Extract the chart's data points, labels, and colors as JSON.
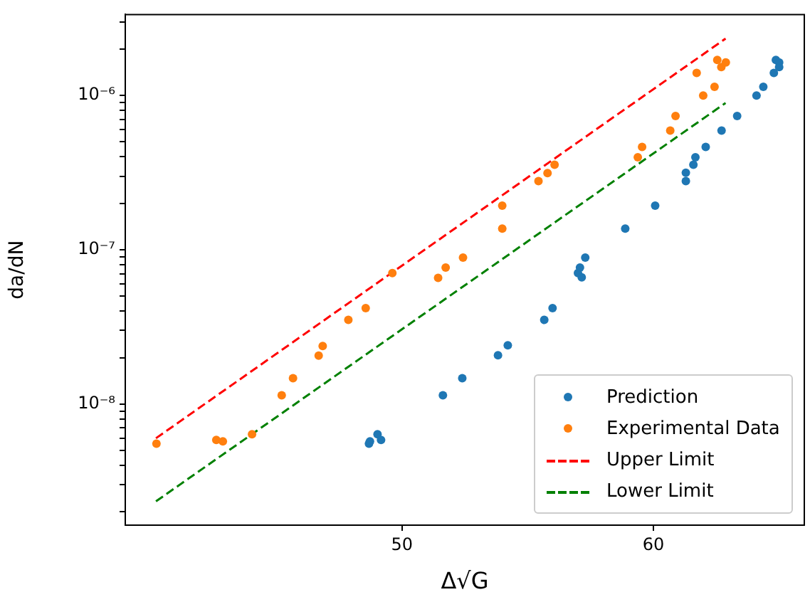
{
  "chart_data": {
    "type": "scatter",
    "xlabel": "Δ√G",
    "ylabel": "da/dN",
    "xlim": [
      39,
      66
    ],
    "xticks": [
      50,
      60
    ],
    "ylim": [
      1.64e-09,
      3.35e-06
    ],
    "log": "y",
    "yticks": [
      {
        "value": 2e-09,
        "label": null
      },
      {
        "value": 3e-09,
        "label": null
      },
      {
        "value": 4e-09,
        "label": null
      },
      {
        "value": 5e-09,
        "label": null
      },
      {
        "value": 6e-09,
        "label": null
      },
      {
        "value": 7e-09,
        "label": null
      },
      {
        "value": 8e-09,
        "label": null
      },
      {
        "value": 9e-09,
        "label": null
      },
      {
        "value": 1e-08,
        "label": "10⁻⁸"
      },
      {
        "value": 2e-08,
        "label": null
      },
      {
        "value": 3e-08,
        "label": null
      },
      {
        "value": 4e-08,
        "label": null
      },
      {
        "value": 5e-08,
        "label": null
      },
      {
        "value": 6e-08,
        "label": null
      },
      {
        "value": 7e-08,
        "label": null
      },
      {
        "value": 8e-08,
        "label": null
      },
      {
        "value": 9e-08,
        "label": null
      },
      {
        "value": 1e-07,
        "label": "10⁻⁷"
      },
      {
        "value": 2e-07,
        "label": null
      },
      {
        "value": 3e-07,
        "label": null
      },
      {
        "value": 4e-07,
        "label": null
      },
      {
        "value": 5e-07,
        "label": null
      },
      {
        "value": 6e-07,
        "label": null
      },
      {
        "value": 7e-07,
        "label": null
      },
      {
        "value": 8e-07,
        "label": null
      },
      {
        "value": 9e-07,
        "label": null
      },
      {
        "value": 1e-06,
        "label": "10⁻⁶"
      },
      {
        "value": 2e-06,
        "label": null
      },
      {
        "value": 3e-06,
        "label": null
      }
    ],
    "grid": false,
    "legend": "bottom right",
    "series": [
      {
        "name": "Prediction",
        "marker": "circle",
        "color": "#1f77b4",
        "x": [
          48.69,
          48.73,
          49.03,
          49.17,
          51.63,
          52.4,
          53.82,
          54.21,
          55.66,
          55.99,
          57.0,
          57.08,
          57.15,
          57.29,
          58.88,
          60.07,
          61.29,
          61.29,
          61.59,
          61.67,
          62.08,
          62.71,
          63.33,
          64.1,
          64.37,
          64.79,
          64.87,
          65.0,
          65.0
        ],
        "values": [
          5.53e-09,
          5.73e-09,
          6.37e-09,
          5.85e-09,
          1.14e-08,
          1.47e-08,
          2.07e-08,
          2.4e-08,
          3.51e-08,
          4.19e-08,
          7.06e-08,
          7.67e-08,
          6.63e-08,
          8.9e-08,
          1.37e-07,
          1.93e-07,
          2.79e-07,
          3.16e-07,
          3.56e-07,
          3.98e-07,
          4.64e-07,
          5.93e-07,
          7.36e-07,
          1e-06,
          1.14e-06,
          1.4e-06,
          1.7e-06,
          1.64e-06,
          1.53e-06
        ]
      },
      {
        "name": "Experimental Data",
        "marker": "circle",
        "color": "#ff7f0e",
        "x": [
          40.24,
          42.62,
          42.88,
          44.04,
          45.22,
          45.67,
          46.69,
          46.85,
          47.87,
          48.56,
          49.62,
          51.44,
          51.74,
          52.43,
          53.99,
          53.99,
          55.43,
          55.79,
          56.07,
          59.38,
          59.55,
          60.67,
          60.88,
          61.98,
          62.43,
          61.72,
          62.54,
          62.7,
          62.88
        ],
        "values": [
          5.53e-09,
          5.85e-09,
          5.73e-09,
          6.37e-09,
          1.14e-08,
          1.47e-08,
          2.06e-08,
          2.38e-08,
          3.51e-08,
          4.19e-08,
          7.06e-08,
          6.58e-08,
          7.67e-08,
          8.9e-08,
          1.93e-07,
          1.37e-07,
          2.79e-07,
          3.14e-07,
          3.56e-07,
          3.98e-07,
          4.64e-07,
          5.93e-07,
          7.36e-07,
          1e-06,
          1.14e-06,
          1.4e-06,
          1.7e-06,
          1.53e-06,
          1.64e-06
        ]
      },
      {
        "name": "Upper Limit",
        "type": "line",
        "line_style": "dashed",
        "marker": "none",
        "color": "#ff0000",
        "x": [
          40.22,
          62.87
        ],
        "values": [
          6e-09,
          2.34e-06
        ]
      },
      {
        "name": "Lower Limit",
        "type": "line",
        "line_style": "dashed",
        "marker": "none",
        "color": "#008000",
        "x": [
          40.22,
          62.87
        ],
        "values": [
          2.34e-09,
          8.95e-07
        ]
      }
    ]
  }
}
